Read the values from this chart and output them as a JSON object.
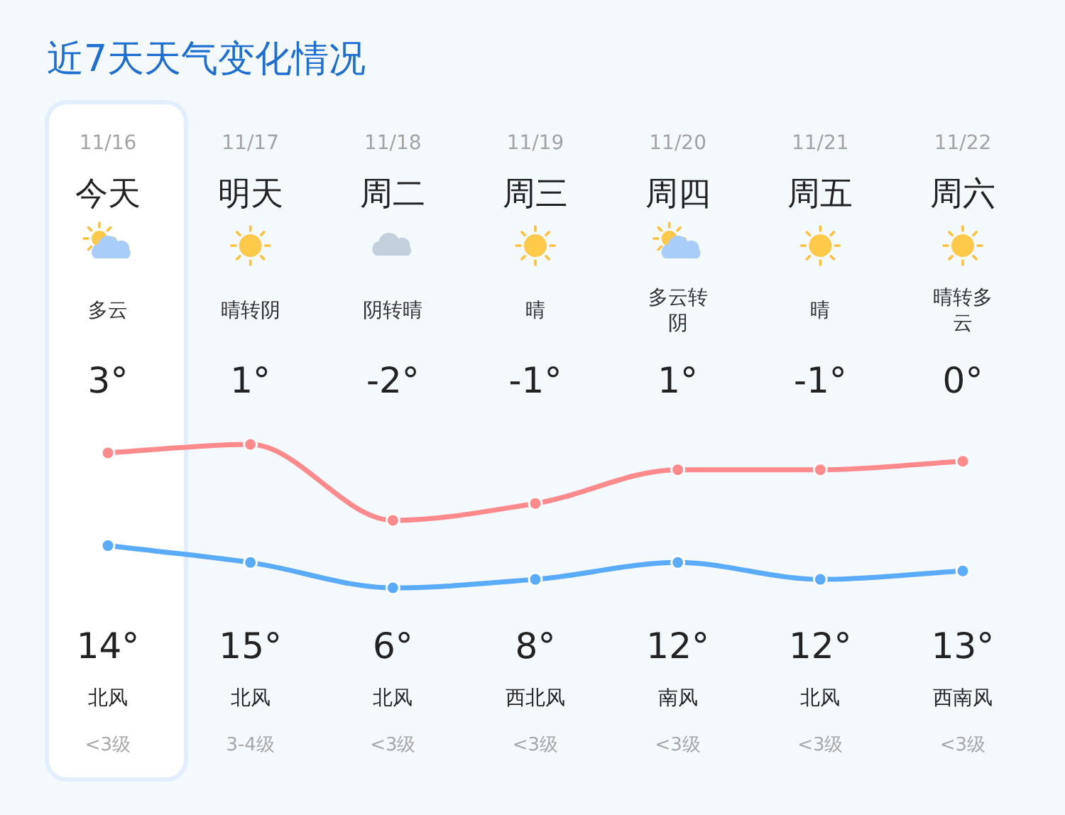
{
  "chart_data": {
    "type": "line",
    "title": "近7天天气变化情况",
    "categories": [
      "11/16",
      "11/17",
      "11/18",
      "11/19",
      "11/20",
      "11/21",
      "11/22"
    ],
    "series": [
      {
        "color": "#5aabfa",
        "values": [
          3,
          1,
          -2,
          -1,
          1,
          -1,
          0
        ],
        "value_labels": [
          "3°",
          "1°",
          "-2°",
          "-1°",
          "1°",
          "-1°",
          "0°"
        ]
      },
      {
        "color": "#ff8a8c",
        "values": [
          14,
          15,
          6,
          8,
          12,
          12,
          13
        ],
        "value_labels": [
          "14°",
          "15°",
          "6°",
          "8°",
          "12°",
          "12°",
          "13°"
        ]
      }
    ],
    "tick_labels": "x",
    "marker": "circle",
    "line_style": "solid",
    "bands": [
      {
        "axis": "x",
        "from": "11/16",
        "to": "11/16",
        "color": "#ffffff"
      }
    ],
    "annotations": [
      "今天",
      "明天",
      "周二",
      "周三",
      "周四",
      "周五",
      "周六",
      "多云",
      "晴转阴",
      "阴转晴",
      "晴",
      "多云转阴",
      "晴",
      "晴转多云",
      "北风",
      "北风",
      "北风",
      "西北风",
      "南风",
      "北风",
      "西南风",
      "<3级",
      "3-4级",
      "<3级",
      "<3级",
      "<3级",
      "<3级",
      "<3级"
    ]
  }
}
